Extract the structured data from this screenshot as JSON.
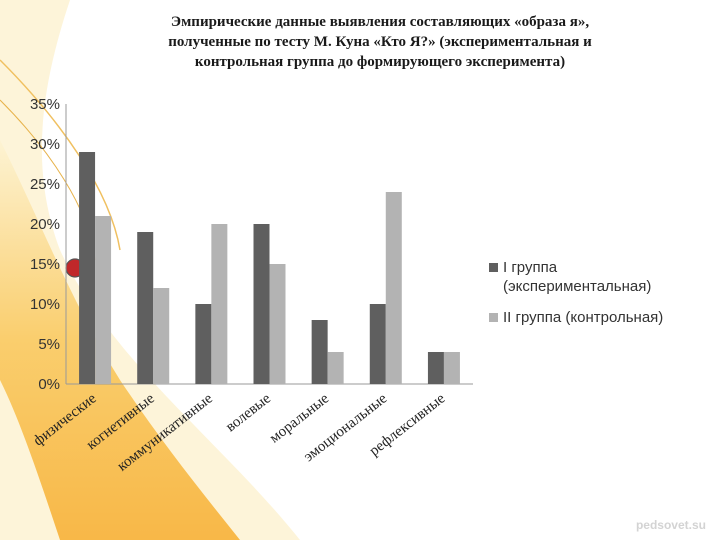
{
  "slide": {
    "title_lines": [
      "Эмпирические данные выявления  составляющих «образа я»,",
      "полученные по тесту М. Куна «Кто Я?» (экспериментальная и",
      "контрольная группа до   формирующего эксперимента)"
    ],
    "watermark": "pedsovet.su",
    "colors": {
      "accent_orange": "#f5a623",
      "accent_yellow": "#fbe9a8",
      "bullet": "#c0282a"
    }
  },
  "chart_data": {
    "type": "bar",
    "title": "Эмпирические данные выявления  составляющих «образа я», полученные по тесту М. Куна «Кто Я?» (экспериментальная и контрольная группа до   формирующего эксперимента)",
    "categories": [
      "физические",
      "когнетивные",
      "коммуникативные",
      "волевые",
      "моральные",
      "эмоциональные",
      "рефлексивные"
    ],
    "series": [
      {
        "name": "I группа (экспериментальная)",
        "legend_lines": [
          "I группа",
          "(экспериментальная)"
        ],
        "values": [
          29,
          19,
          10,
          20,
          8,
          10,
          4
        ],
        "color": "#5f5f5f"
      },
      {
        "name": "II группа (контрольная)",
        "legend_lines": [
          "II группа (контрольная)"
        ],
        "values": [
          21,
          12,
          20,
          15,
          4,
          24,
          4
        ],
        "color": "#b3b3b3"
      }
    ],
    "y_ticks": [
      "0%",
      "5%",
      "10%",
      "15%",
      "20%",
      "25%",
      "30%",
      "35%"
    ],
    "ylim": [
      0,
      35
    ],
    "xlabel": "",
    "ylabel": "",
    "grid": false,
    "legend_position": "right"
  }
}
